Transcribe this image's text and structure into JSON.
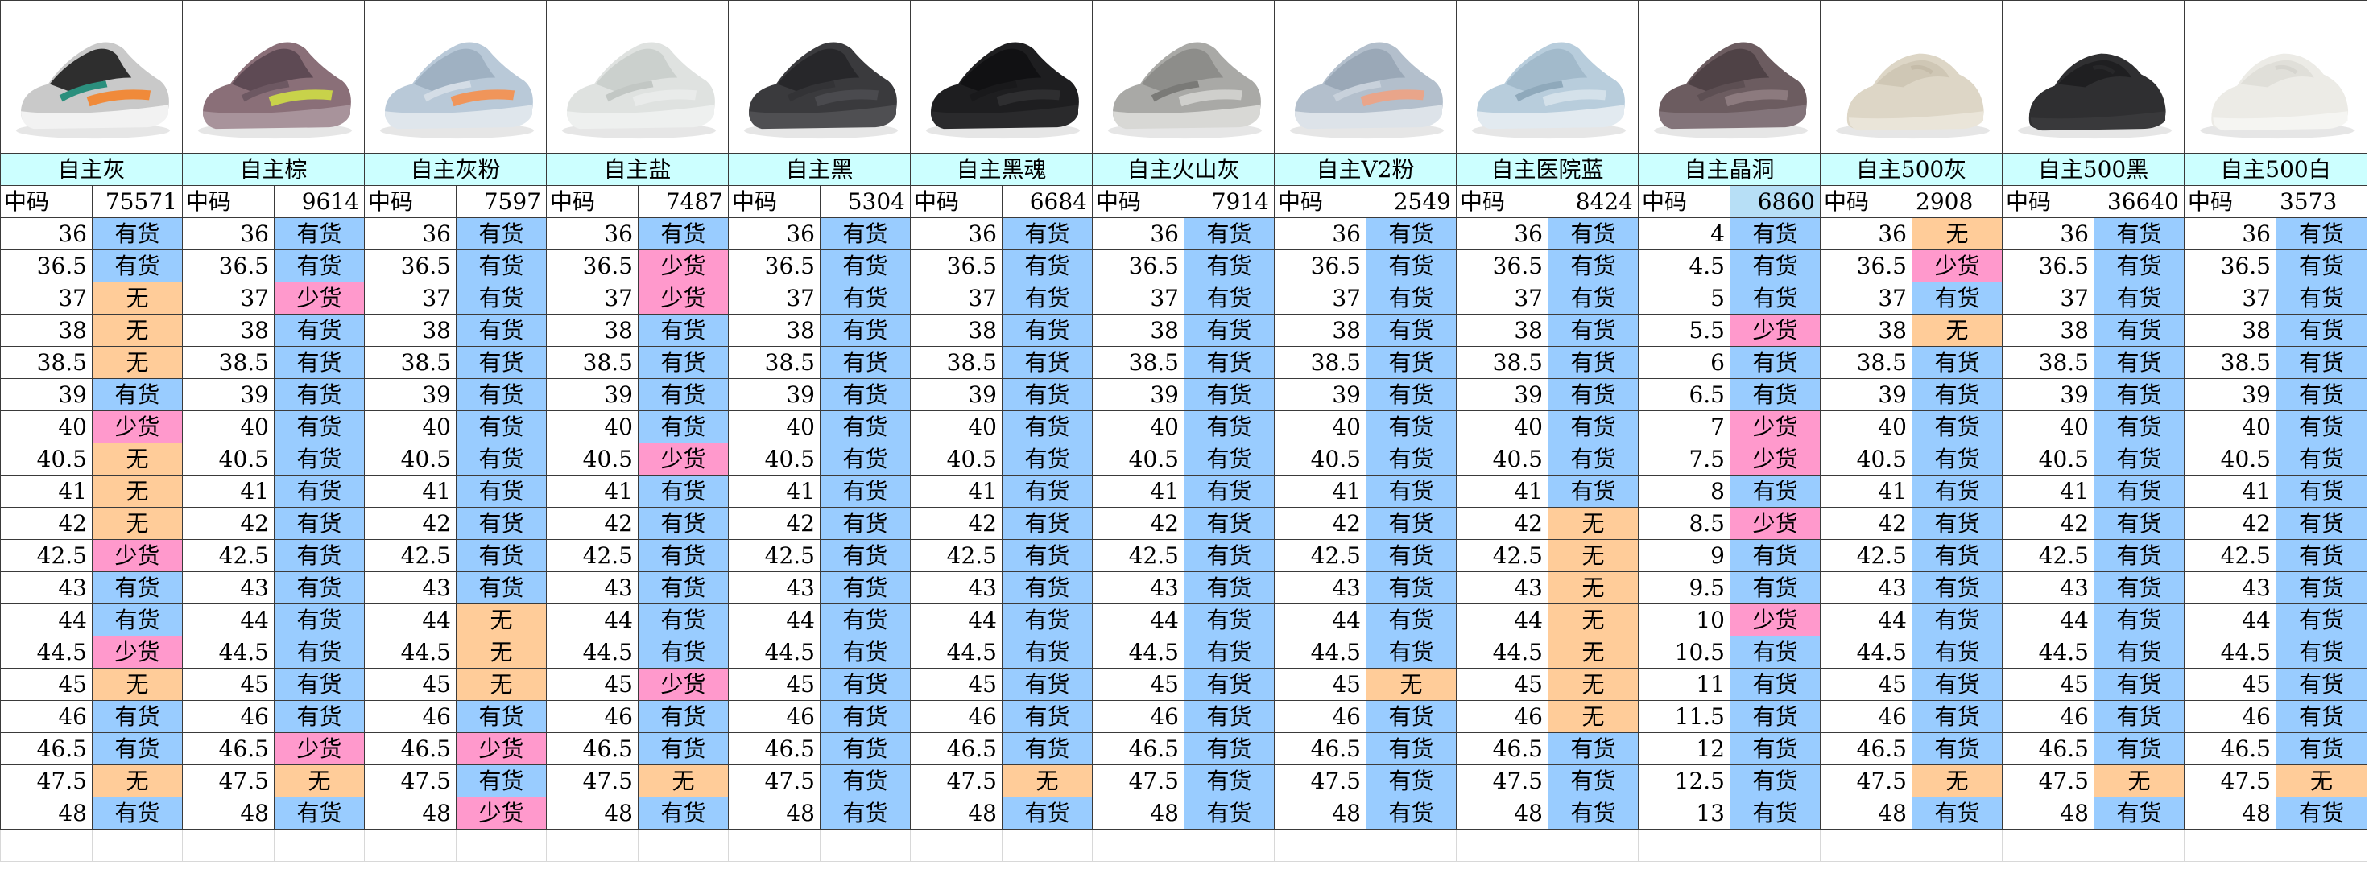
{
  "colors": {
    "in_stock": "#99ccff",
    "low": "#ff99cc",
    "none": "#ffcc99",
    "header": "#ccffff"
  },
  "products": [
    {
      "name": "自主灰",
      "code_label": "中码",
      "code": "75571",
      "icon": "sneaker-700-wave-runner-image",
      "shoe": {
        "body": "#c9c9c9",
        "upper": "#2e2e2e",
        "accent": "#f08a3a",
        "accent2": "#2b8f7d",
        "sole": "#f2f2f2"
      },
      "sizes": [
        "36",
        "36.5",
        "37",
        "38",
        "38.5",
        "39",
        "40",
        "40.5",
        "41",
        "42",
        "42.5",
        "43",
        "44",
        "44.5",
        "45",
        "46",
        "46.5",
        "47.5",
        "48"
      ],
      "status": [
        "有货",
        "有货",
        "无",
        "无",
        "无",
        "有货",
        "少货",
        "无",
        "无",
        "无",
        "少货",
        "有货",
        "有货",
        "少货",
        "无",
        "有货",
        "有货",
        "无",
        "有货"
      ]
    },
    {
      "name": "自主棕",
      "code_label": "中码",
      "code": "9614",
      "icon": "sneaker-700-mauve-image",
      "shoe": {
        "body": "#8a6f78",
        "upper": "#5e4a54",
        "accent": "#c8d24a",
        "accent2": "#6d5862",
        "sole": "#a8939b"
      },
      "sizes": [
        "36",
        "36.5",
        "37",
        "38",
        "38.5",
        "39",
        "40",
        "40.5",
        "41",
        "42",
        "42.5",
        "43",
        "44",
        "44.5",
        "45",
        "46",
        "46.5",
        "47.5",
        "48"
      ],
      "status": [
        "有货",
        "有货",
        "少货",
        "有货",
        "有货",
        "有货",
        "有货",
        "有货",
        "有货",
        "有货",
        "有货",
        "有货",
        "有货",
        "有货",
        "有货",
        "有货",
        "少货",
        "无",
        "有货"
      ]
    },
    {
      "name": "自主灰粉",
      "code_label": "中码",
      "code": "7597",
      "icon": "sneaker-700-inertia-image",
      "shoe": {
        "body": "#b9c9d8",
        "upper": "#9fb1c2",
        "accent": "#f0955a",
        "accent2": "#d4dde6",
        "sole": "#dfe6ec"
      },
      "sizes": [
        "36",
        "36.5",
        "37",
        "38",
        "38.5",
        "39",
        "40",
        "40.5",
        "41",
        "42",
        "42.5",
        "43",
        "44",
        "44.5",
        "45",
        "46",
        "46.5",
        "47.5",
        "48"
      ],
      "status": [
        "有货",
        "有货",
        "有货",
        "有货",
        "有货",
        "有货",
        "有货",
        "有货",
        "有货",
        "有货",
        "有货",
        "有货",
        "无",
        "无",
        "无",
        "有货",
        "少货",
        "有货",
        "少货"
      ]
    },
    {
      "name": "自主盐",
      "code_label": "中码",
      "code": "7487",
      "icon": "sneaker-700-salt-image",
      "shoe": {
        "body": "#dfe2e0",
        "upper": "#cbd0cd",
        "accent": "#e9ebea",
        "accent2": "#c2c7c4",
        "sole": "#eef0ef"
      },
      "sizes": [
        "36",
        "36.5",
        "37",
        "38",
        "38.5",
        "39",
        "40",
        "40.5",
        "41",
        "42",
        "42.5",
        "43",
        "44",
        "44.5",
        "45",
        "46",
        "46.5",
        "47.5",
        "48"
      ],
      "status": [
        "有货",
        "少货",
        "少货",
        "有货",
        "有货",
        "有货",
        "有货",
        "少货",
        "有货",
        "有货",
        "有货",
        "有货",
        "有货",
        "有货",
        "少货",
        "有货",
        "有货",
        "无",
        "有货"
      ]
    },
    {
      "name": "自主黑",
      "code_label": "中码",
      "code": "5304",
      "icon": "sneaker-700-utility-black-image",
      "shoe": {
        "body": "#3a3a3d",
        "upper": "#27272a",
        "accent": "#4a4a4e",
        "accent2": "#333336",
        "sole": "#4f4f52"
      },
      "sizes": [
        "36",
        "36.5",
        "37",
        "38",
        "38.5",
        "39",
        "40",
        "40.5",
        "41",
        "42",
        "42.5",
        "43",
        "44",
        "44.5",
        "45",
        "46",
        "46.5",
        "47.5",
        "48"
      ],
      "status": [
        "有货",
        "有货",
        "有货",
        "有货",
        "有货",
        "有货",
        "有货",
        "有货",
        "有货",
        "有货",
        "有货",
        "有货",
        "有货",
        "有货",
        "有货",
        "有货",
        "有货",
        "有货",
        "有货"
      ]
    },
    {
      "name": "自主黑魂",
      "code_label": "中码",
      "code": "6684",
      "icon": "sneaker-700-v2-black-image",
      "shoe": {
        "body": "#1e1e20",
        "upper": "#111113",
        "accent": "#2e2e30",
        "accent2": "#19191b",
        "sole": "#2a2a2c"
      },
      "sizes": [
        "36",
        "36.5",
        "37",
        "38",
        "38.5",
        "39",
        "40",
        "40.5",
        "41",
        "42",
        "42.5",
        "43",
        "44",
        "44.5",
        "45",
        "46",
        "46.5",
        "47.5",
        "48"
      ],
      "status": [
        "有货",
        "有货",
        "有货",
        "有货",
        "有货",
        "有货",
        "有货",
        "有货",
        "有货",
        "有货",
        "有货",
        "有货",
        "有货",
        "有货",
        "有货",
        "有货",
        "有货",
        "无",
        "有货"
      ]
    },
    {
      "name": "自主火山灰",
      "code_label": "中码",
      "code": "7914",
      "icon": "sneaker-700-v2-tephra-image",
      "shoe": {
        "body": "#a9a9a6",
        "upper": "#8d8d8a",
        "accent": "#cfcfcc",
        "accent2": "#7a7a77",
        "sole": "#d8d8d5"
      },
      "sizes": [
        "36",
        "36.5",
        "37",
        "38",
        "38.5",
        "39",
        "40",
        "40.5",
        "41",
        "42",
        "42.5",
        "43",
        "44",
        "44.5",
        "45",
        "46",
        "46.5",
        "47.5",
        "48"
      ],
      "status": [
        "有货",
        "有货",
        "有货",
        "有货",
        "有货",
        "有货",
        "有货",
        "有货",
        "有货",
        "有货",
        "有货",
        "有货",
        "有货",
        "有货",
        "有货",
        "有货",
        "有货",
        "有货",
        "有货"
      ]
    },
    {
      "name": "自主V2粉",
      "code_label": "中码",
      "code": "2549",
      "icon": "sneaker-700-v2-inertia-image",
      "shoe": {
        "body": "#b3bfcc",
        "upper": "#9aa8b7",
        "accent": "#e9a58a",
        "accent2": "#c8d1db",
        "sole": "#dde3e9"
      },
      "sizes": [
        "36",
        "36.5",
        "37",
        "38",
        "38.5",
        "39",
        "40",
        "40.5",
        "41",
        "42",
        "42.5",
        "43",
        "44",
        "44.5",
        "45",
        "46",
        "46.5",
        "47.5",
        "48"
      ],
      "status": [
        "有货",
        "有货",
        "有货",
        "有货",
        "有货",
        "有货",
        "有货",
        "有货",
        "有货",
        "有货",
        "有货",
        "有货",
        "有货",
        "有货",
        "无",
        "有货",
        "有货",
        "有货",
        "有货"
      ]
    },
    {
      "name": "自主医院蓝",
      "code_label": "中码",
      "code": "8424",
      "icon": "sneaker-700-hospital-blue-image",
      "shoe": {
        "body": "#b8cddc",
        "upper": "#a2bacb",
        "accent": "#d4e1ea",
        "accent2": "#8fa9bb",
        "sole": "#e2eaf0"
      },
      "sizes": [
        "36",
        "36.5",
        "37",
        "38",
        "38.5",
        "39",
        "40",
        "40.5",
        "41",
        "42",
        "42.5",
        "43",
        "44",
        "44.5",
        "45",
        "46",
        "46.5",
        "47.5",
        "48"
      ],
      "status": [
        "有货",
        "有货",
        "有货",
        "有货",
        "有货",
        "有货",
        "有货",
        "有货",
        "有货",
        "无",
        "无",
        "无",
        "无",
        "无",
        "无",
        "无",
        "有货",
        "有货",
        "有货"
      ]
    },
    {
      "name": "自主晶洞",
      "code_label": "中码",
      "code": "6860",
      "icon": "sneaker-700-geode-image",
      "shoe": {
        "body": "#6c5c60",
        "upper": "#4f4246",
        "accent": "#8c7a7e",
        "accent2": "#5d4f53",
        "sole": "#83747a"
      },
      "sizes": [
        "4",
        "4.5",
        "5",
        "5.5",
        "6",
        "6.5",
        "7",
        "7.5",
        "8",
        "8.5",
        "9",
        "9.5",
        "10",
        "10.5",
        "11",
        "11.5",
        "12",
        "12.5",
        "13"
      ],
      "status": [
        "有货",
        "有货",
        "有货",
        "少货",
        "有货",
        "有货",
        "少货",
        "少货",
        "有货",
        "少货",
        "有货",
        "有货",
        "少货",
        "有货",
        "有货",
        "有货",
        "有货",
        "有货",
        "有货"
      ]
    },
    {
      "name": "自主500灰",
      "code_label": "中码",
      "code": "2908",
      "icon": "sneaker-500-blush-image",
      "shoe": {
        "body": "#ddd6c6",
        "upper": "#cfc7b5",
        "accent": "#e8e2d4",
        "accent2": "#c5bca9",
        "sole": "#eae5d9"
      },
      "sizes": [
        "36",
        "36.5",
        "37",
        "38",
        "38.5",
        "39",
        "40",
        "40.5",
        "41",
        "42",
        "42.5",
        "43",
        "44",
        "44.5",
        "45",
        "46",
        "46.5",
        "47.5",
        "48"
      ],
      "status": [
        "无",
        "少货",
        "有货",
        "无",
        "有货",
        "有货",
        "有货",
        "有货",
        "有货",
        "有货",
        "有货",
        "有货",
        "有货",
        "有货",
        "有货",
        "有货",
        "有货",
        "无",
        "有货"
      ]
    },
    {
      "name": "自主500黑",
      "code_label": "中码",
      "code": "36640",
      "icon": "sneaker-500-utility-black-image",
      "shoe": {
        "body": "#2f2f31",
        "upper": "#1f1f21",
        "accent": "#3d3d40",
        "accent2": "#272729",
        "sole": "#39393b"
      },
      "sizes": [
        "36",
        "36.5",
        "37",
        "38",
        "38.5",
        "39",
        "40",
        "40.5",
        "41",
        "42",
        "42.5",
        "43",
        "44",
        "44.5",
        "45",
        "46",
        "46.5",
        "47.5",
        "48"
      ],
      "status": [
        "有货",
        "有货",
        "有货",
        "有货",
        "有货",
        "有货",
        "有货",
        "有货",
        "有货",
        "有货",
        "有货",
        "有货",
        "有货",
        "有货",
        "有货",
        "有货",
        "有货",
        "无",
        "有货"
      ]
    },
    {
      "name": "自主500白",
      "code_label": "中码",
      "code": "3573",
      "icon": "sneaker-500-salt-white-image",
      "shoe": {
        "body": "#ecebe6",
        "upper": "#e0dfd9",
        "accent": "#f4f3ef",
        "accent2": "#d6d5cf",
        "sole": "#f5f5f2"
      },
      "sizes": [
        "36",
        "36.5",
        "37",
        "38",
        "38.5",
        "39",
        "40",
        "40.5",
        "41",
        "42",
        "42.5",
        "43",
        "44",
        "44.5",
        "45",
        "46",
        "46.5",
        "47.5",
        "48"
      ],
      "status": [
        "有货",
        "有货",
        "有货",
        "有货",
        "有货",
        "有货",
        "有货",
        "有货",
        "有货",
        "有货",
        "有货",
        "有货",
        "有货",
        "有货",
        "有货",
        "有货",
        "有货",
        "无",
        "有货"
      ]
    }
  ]
}
